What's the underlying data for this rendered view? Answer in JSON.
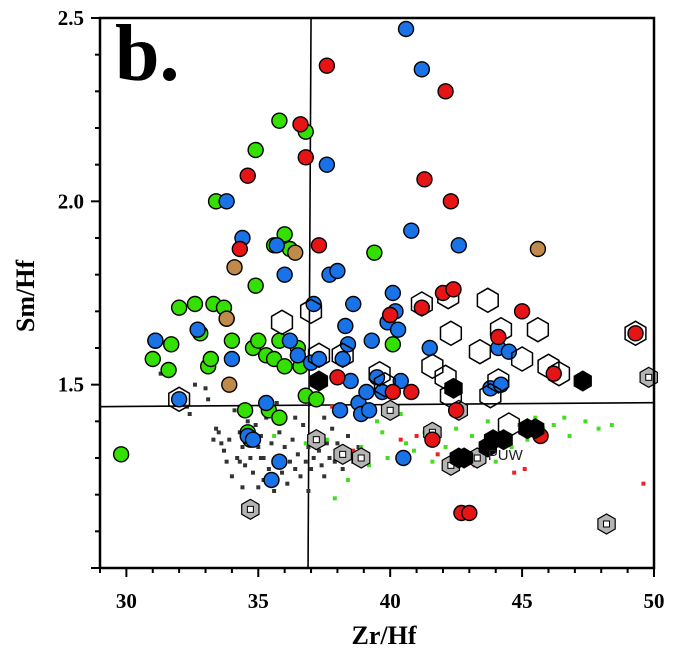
{
  "chart_data": {
    "type": "scatter",
    "panel_label": "b.",
    "xlabel": "Zr/Hf",
    "ylabel": "Sm/Hf",
    "xlim": [
      29,
      50
    ],
    "ylim": [
      1.0,
      2.5
    ],
    "x_ticks": [
      30,
      35,
      40,
      45,
      50
    ],
    "x_tick_labels": [
      "30",
      "35",
      "40",
      "45",
      "50"
    ],
    "y_ticks": [
      1.5,
      2.0,
      2.5
    ],
    "y_tick_labels": [
      "1.5",
      "2.0",
      "2.5"
    ],
    "grid": false,
    "reference_lines": {
      "zr_hf": 37.0,
      "sm_hf": 1.44
    },
    "annotation": {
      "text": "PUW",
      "x": 43.7,
      "y": 1.295
    },
    "colors": {
      "green": "#33e000",
      "blue": "#1a73e6",
      "red": "#e61414",
      "tan": "#c08a4a",
      "black": "#000000",
      "gray": "#b4b4b4",
      "small_black": "#333333",
      "small_green": "#44dd22",
      "small_red": "#ee2222"
    },
    "series": [
      {
        "style": "green_circle",
        "points": [
          [
            29.8,
            1.31
          ],
          [
            31.0,
            1.57
          ],
          [
            31.1,
            1.62
          ],
          [
            31.6,
            1.54
          ],
          [
            31.7,
            1.61
          ],
          [
            32.0,
            1.71
          ],
          [
            32.6,
            1.72
          ],
          [
            32.8,
            1.64
          ],
          [
            33.1,
            1.55
          ],
          [
            33.2,
            1.57
          ],
          [
            33.3,
            1.72
          ],
          [
            33.4,
            2.0
          ],
          [
            33.7,
            1.71
          ],
          [
            33.8,
            1.68
          ],
          [
            34.0,
            1.62
          ],
          [
            34.5,
            1.43
          ],
          [
            34.6,
            1.37
          ],
          [
            34.7,
            1.35
          ],
          [
            34.8,
            1.6
          ],
          [
            34.9,
            2.14
          ],
          [
            34.9,
            1.77
          ],
          [
            35.0,
            1.62
          ],
          [
            35.3,
            1.58
          ],
          [
            35.4,
            1.43
          ],
          [
            35.6,
            1.57
          ],
          [
            35.6,
            1.88
          ],
          [
            35.8,
            1.41
          ],
          [
            35.8,
            2.22
          ],
          [
            35.8,
            1.62
          ],
          [
            36.0,
            1.91
          ],
          [
            36.0,
            1.55
          ],
          [
            36.2,
            1.87
          ],
          [
            36.5,
            1.6
          ],
          [
            36.6,
            1.55
          ],
          [
            36.8,
            2.19
          ],
          [
            36.8,
            1.47
          ],
          [
            37.2,
            1.46
          ],
          [
            39.4,
            1.86
          ],
          [
            40.1,
            1.61
          ]
        ]
      },
      {
        "style": "blue_circle",
        "points": [
          [
            31.1,
            1.62
          ],
          [
            32.0,
            1.46
          ],
          [
            32.7,
            1.65
          ],
          [
            33.8,
            2.0
          ],
          [
            34.0,
            1.57
          ],
          [
            34.4,
            1.9
          ],
          [
            34.6,
            1.36
          ],
          [
            34.8,
            1.35
          ],
          [
            35.3,
            1.45
          ],
          [
            35.5,
            1.24
          ],
          [
            35.7,
            1.88
          ],
          [
            35.8,
            1.29
          ],
          [
            36.0,
            1.8
          ],
          [
            36.2,
            1.62
          ],
          [
            36.5,
            1.58
          ],
          [
            37.0,
            1.56
          ],
          [
            37.1,
            1.72
          ],
          [
            37.3,
            1.57
          ],
          [
            37.6,
            2.1
          ],
          [
            37.7,
            1.8
          ],
          [
            38.0,
            1.81
          ],
          [
            38.1,
            1.43
          ],
          [
            38.2,
            1.57
          ],
          [
            38.3,
            1.66
          ],
          [
            38.4,
            1.61
          ],
          [
            38.5,
            1.51
          ],
          [
            38.6,
            1.72
          ],
          [
            38.8,
            1.45
          ],
          [
            38.9,
            1.42
          ],
          [
            39.1,
            1.48
          ],
          [
            39.2,
            1.43
          ],
          [
            39.3,
            1.62
          ],
          [
            39.5,
            1.52
          ],
          [
            39.7,
            1.48
          ],
          [
            39.9,
            1.67
          ],
          [
            40.0,
            1.69
          ],
          [
            40.1,
            1.75
          ],
          [
            40.2,
            1.7
          ],
          [
            40.3,
            1.65
          ],
          [
            40.4,
            1.51
          ],
          [
            40.5,
            1.3
          ],
          [
            40.6,
            2.47
          ],
          [
            40.8,
            1.92
          ],
          [
            41.2,
            2.36
          ],
          [
            41.5,
            1.6
          ],
          [
            42.6,
            1.88
          ],
          [
            43.8,
            1.49
          ],
          [
            44.1,
            1.6
          ],
          [
            44.2,
            1.5
          ],
          [
            44.5,
            1.59
          ]
        ]
      },
      {
        "style": "red_circle",
        "points": [
          [
            34.3,
            1.87
          ],
          [
            34.6,
            2.07
          ],
          [
            36.6,
            2.21
          ],
          [
            36.8,
            2.12
          ],
          [
            37.3,
            1.88
          ],
          [
            37.6,
            2.37
          ],
          [
            38.0,
            1.52
          ],
          [
            40.0,
            1.69
          ],
          [
            40.1,
            1.48
          ],
          [
            40.8,
            1.48
          ],
          [
            41.2,
            1.71
          ],
          [
            41.3,
            2.06
          ],
          [
            41.6,
            1.35
          ],
          [
            42.0,
            1.75
          ],
          [
            42.1,
            2.3
          ],
          [
            42.3,
            2.0
          ],
          [
            42.4,
            1.76
          ],
          [
            42.5,
            1.43
          ],
          [
            42.7,
            1.15
          ],
          [
            43.0,
            1.15
          ],
          [
            44.1,
            1.63
          ],
          [
            45.0,
            1.7
          ],
          [
            45.7,
            1.36
          ],
          [
            46.2,
            1.53
          ],
          [
            49.3,
            1.64
          ]
        ]
      },
      {
        "style": "tan_circle",
        "points": [
          [
            33.8,
            1.68
          ],
          [
            33.9,
            1.5
          ],
          [
            34.1,
            1.82
          ],
          [
            36.4,
            1.86
          ],
          [
            45.6,
            1.87
          ]
        ]
      },
      {
        "style": "hex_circle",
        "points": [
          [
            32.0,
            1.46
          ],
          [
            35.9,
            1.67
          ],
          [
            37.0,
            1.7
          ],
          [
            37.3,
            1.58
          ],
          [
            38.2,
            1.58
          ],
          [
            39.6,
            1.53
          ],
          [
            39.8,
            1.5
          ],
          [
            41.2,
            1.72
          ],
          [
            41.6,
            1.55
          ],
          [
            42.1,
            1.52
          ],
          [
            42.2,
            1.74
          ],
          [
            42.3,
            1.47
          ],
          [
            42.3,
            1.64
          ],
          [
            43.4,
            1.59
          ],
          [
            43.7,
            1.73
          ],
          [
            43.8,
            1.47
          ],
          [
            44.1,
            1.51
          ],
          [
            44.2,
            1.65
          ],
          [
            44.5,
            1.39
          ],
          [
            45.0,
            1.57
          ],
          [
            45.6,
            1.65
          ],
          [
            46.0,
            1.55
          ],
          [
            46.4,
            1.53
          ],
          [
            49.3,
            1.64
          ]
        ]
      },
      {
        "style": "hex_black",
        "points": [
          [
            37.3,
            1.51
          ],
          [
            42.4,
            1.49
          ],
          [
            42.6,
            1.3
          ],
          [
            42.8,
            1.3
          ],
          [
            43.7,
            1.33
          ],
          [
            43.9,
            1.35
          ],
          [
            44.3,
            1.35
          ],
          [
            45.2,
            1.38
          ],
          [
            45.5,
            1.38
          ],
          [
            47.3,
            1.51
          ]
        ]
      },
      {
        "style": "hex_gray",
        "points": [
          [
            34.7,
            1.16
          ],
          [
            37.2,
            1.35
          ],
          [
            38.2,
            1.31
          ],
          [
            38.9,
            1.3
          ],
          [
            40.0,
            1.43
          ],
          [
            41.6,
            1.37
          ],
          [
            42.3,
            1.28
          ],
          [
            42.6,
            1.43
          ],
          [
            43.3,
            1.3
          ],
          [
            48.2,
            1.12
          ],
          [
            49.8,
            1.52
          ]
        ]
      },
      {
        "style": "small_black",
        "points": [
          [
            31.3,
            1.53
          ],
          [
            32.3,
            1.44
          ],
          [
            32.4,
            1.42
          ],
          [
            32.6,
            1.5
          ],
          [
            33.0,
            1.49
          ],
          [
            33.1,
            1.46
          ],
          [
            33.3,
            1.35
          ],
          [
            33.4,
            1.38
          ],
          [
            33.5,
            1.37
          ],
          [
            33.6,
            1.34
          ],
          [
            33.7,
            1.32
          ],
          [
            33.9,
            1.35
          ],
          [
            34.1,
            1.43
          ],
          [
            34.2,
            1.3
          ],
          [
            34.3,
            1.37
          ],
          [
            34.3,
            1.29
          ],
          [
            34.4,
            1.33
          ],
          [
            34.5,
            1.28
          ],
          [
            34.6,
            1.4
          ],
          [
            34.7,
            1.3
          ],
          [
            34.8,
            1.26
          ],
          [
            34.9,
            1.39
          ],
          [
            35.0,
            1.33
          ],
          [
            35.0,
            1.22
          ],
          [
            35.1,
            1.36
          ],
          [
            35.2,
            1.3
          ],
          [
            35.2,
            1.24
          ],
          [
            35.3,
            1.41
          ],
          [
            35.4,
            1.27
          ],
          [
            35.5,
            1.34
          ],
          [
            35.6,
            1.21
          ],
          [
            35.7,
            1.3
          ],
          [
            35.8,
            1.37
          ],
          [
            35.9,
            1.26
          ],
          [
            36.0,
            1.33
          ],
          [
            36.1,
            1.23
          ],
          [
            36.2,
            1.29
          ],
          [
            36.3,
            1.35
          ],
          [
            36.4,
            1.27
          ],
          [
            36.5,
            1.31
          ],
          [
            36.6,
            1.25
          ],
          [
            36.7,
            1.39
          ],
          [
            36.8,
            1.29
          ],
          [
            36.9,
            1.33
          ],
          [
            37.0,
            1.27
          ],
          [
            37.1,
            1.3
          ],
          [
            37.2,
            1.36
          ],
          [
            37.3,
            1.32
          ],
          [
            37.4,
            1.28
          ],
          [
            37.5,
            1.25
          ],
          [
            37.6,
            1.34
          ],
          [
            37.7,
            1.3
          ],
          [
            37.8,
            1.38
          ],
          [
            37.9,
            1.29
          ],
          [
            38.0,
            1.34
          ],
          [
            38.2,
            1.27
          ],
          [
            38.3,
            1.31
          ],
          [
            38.4,
            1.36
          ],
          [
            38.6,
            1.29
          ],
          [
            38.8,
            1.33
          ],
          [
            39.0,
            1.31
          ],
          [
            34.0,
            1.25
          ],
          [
            33.8,
            1.29
          ],
          [
            35.7,
            1.45
          ],
          [
            36.4,
            1.41
          ],
          [
            37.5,
            1.41
          ],
          [
            36.9,
            1.21
          ],
          [
            35.1,
            1.3
          ],
          [
            34.4,
            1.22
          ]
        ]
      },
      {
        "style": "small_green",
        "points": [
          [
            35.6,
            1.36
          ],
          [
            36.8,
            1.34
          ],
          [
            37.6,
            1.35
          ],
          [
            38.1,
            1.3
          ],
          [
            38.4,
            1.24
          ],
          [
            38.9,
            1.33
          ],
          [
            39.2,
            1.28
          ],
          [
            39.5,
            1.4
          ],
          [
            39.7,
            1.37
          ],
          [
            39.9,
            1.3
          ],
          [
            40.4,
            1.42
          ],
          [
            40.6,
            1.34
          ],
          [
            40.9,
            1.32
          ],
          [
            41.3,
            1.37
          ],
          [
            41.6,
            1.29
          ],
          [
            41.8,
            1.36
          ],
          [
            42.1,
            1.33
          ],
          [
            42.5,
            1.38
          ],
          [
            42.8,
            1.32
          ],
          [
            43.1,
            1.36
          ],
          [
            43.4,
            1.31
          ],
          [
            43.7,
            1.4
          ],
          [
            44.0,
            1.29
          ],
          [
            44.3,
            1.37
          ],
          [
            44.6,
            1.33
          ],
          [
            44.9,
            1.39
          ],
          [
            45.2,
            1.35
          ],
          [
            45.5,
            1.41
          ],
          [
            45.8,
            1.38
          ],
          [
            46.2,
            1.39
          ],
          [
            46.6,
            1.41
          ],
          [
            47.4,
            1.4
          ],
          [
            47.9,
            1.38
          ],
          [
            48.4,
            1.39
          ],
          [
            46.8,
            1.36
          ],
          [
            37.9,
            1.19
          ],
          [
            42.4,
            1.42
          ]
        ]
      },
      {
        "style": "small_red",
        "points": [
          [
            37.8,
            1.44
          ],
          [
            38.6,
            1.32
          ],
          [
            40.4,
            1.35
          ],
          [
            41.0,
            1.36
          ],
          [
            41.8,
            1.31
          ],
          [
            43.2,
            1.28
          ],
          [
            44.7,
            1.26
          ],
          [
            45.1,
            1.27
          ],
          [
            49.6,
            1.23
          ]
        ]
      }
    ]
  }
}
